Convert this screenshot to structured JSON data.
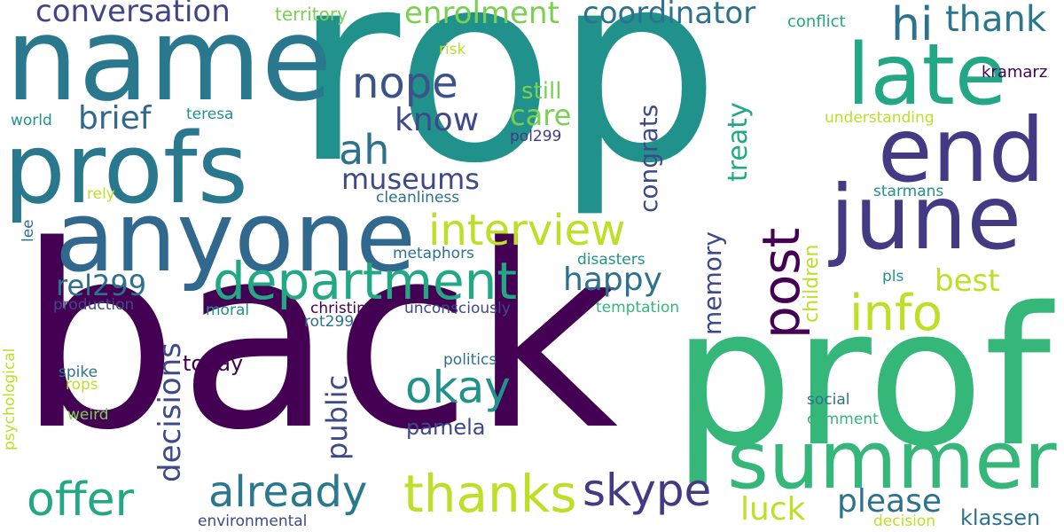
{
  "words": [
    {
      "key": "rop",
      "text": "rop",
      "color": "#21918c"
    },
    {
      "key": "back",
      "text": "back",
      "color": "#440154"
    },
    {
      "key": "prof",
      "text": "prof",
      "color": "#35b779"
    },
    {
      "key": "name",
      "text": "name",
      "color": "#2a788e"
    },
    {
      "key": "profs",
      "text": "profs",
      "color": "#2a788e"
    },
    {
      "key": "anyone",
      "text": "anyone",
      "color": "#31688e"
    },
    {
      "key": "june",
      "text": "june",
      "color": "#443983"
    },
    {
      "key": "end",
      "text": "end",
      "color": "#443983"
    },
    {
      "key": "late",
      "text": "late",
      "color": "#22a884"
    },
    {
      "key": "summer",
      "text": "summer",
      "color": "#35b779"
    },
    {
      "key": "department",
      "text": "department",
      "color": "#22a884"
    },
    {
      "key": "interview",
      "text": "interview",
      "color": "#bddf26"
    },
    {
      "key": "info",
      "text": "info",
      "color": "#bddf26"
    },
    {
      "key": "post",
      "text": "post",
      "color": "#440154"
    },
    {
      "key": "already",
      "text": "already",
      "color": "#2a788e"
    },
    {
      "key": "thanks",
      "text": "thanks",
      "color": "#bddf26"
    },
    {
      "key": "offer",
      "text": "offer",
      "color": "#22a884"
    },
    {
      "key": "skype",
      "text": "skype",
      "color": "#443983"
    },
    {
      "key": "okay",
      "text": "okay",
      "color": "#21918c"
    },
    {
      "key": "conversation",
      "text": "conversation",
      "color": "#414487"
    },
    {
      "key": "coordinator",
      "text": "coordinator",
      "color": "#2c728e"
    },
    {
      "key": "enrolment",
      "text": "enrolment",
      "color": "#7ad151"
    },
    {
      "key": "nope",
      "text": "nope",
      "color": "#3b528b"
    },
    {
      "key": "ah",
      "text": "ah",
      "color": "#2c728e"
    },
    {
      "key": "hi",
      "text": "hi",
      "color": "#2c728e"
    },
    {
      "key": "thank",
      "text": "thank",
      "color": "#2a788e"
    },
    {
      "key": "know",
      "text": "know",
      "color": "#3e4989"
    },
    {
      "key": "brief",
      "text": "brief",
      "color": "#31688e"
    },
    {
      "key": "care",
      "text": "care",
      "color": "#7ad151"
    },
    {
      "key": "museums",
      "text": "museums",
      "color": "#3e4989"
    },
    {
      "key": "rel299",
      "text": "rel299",
      "color": "#2c728e"
    },
    {
      "key": "happy",
      "text": "happy",
      "color": "#2c728e"
    },
    {
      "key": "best",
      "text": "best",
      "color": "#bddf26"
    },
    {
      "key": "please",
      "text": "please",
      "color": "#2c728e"
    },
    {
      "key": "luck",
      "text": "luck",
      "color": "#bddf26"
    },
    {
      "key": "decisions",
      "text": "decisions",
      "color": "#3e4989"
    },
    {
      "key": "public",
      "text": "public",
      "color": "#3e4989"
    },
    {
      "key": "congrats",
      "text": "congrats",
      "color": "#3e4989"
    },
    {
      "key": "treaty",
      "text": "treaty",
      "color": "#22a884"
    },
    {
      "key": "memory",
      "text": "memory",
      "color": "#3e4989"
    },
    {
      "key": "children",
      "text": "children",
      "color": "#bddf26"
    },
    {
      "key": "still",
      "text": "still",
      "color": "#7ad151"
    },
    {
      "key": "today",
      "text": "today",
      "color": "#440154"
    },
    {
      "key": "pamela",
      "text": "pamela",
      "color": "#3e4989"
    },
    {
      "key": "klassen",
      "text": "klassen",
      "color": "#2c728e"
    },
    {
      "key": "territory",
      "text": "territory",
      "color": "#7ad151"
    },
    {
      "key": "conflict",
      "text": "conflict",
      "color": "#22a884"
    },
    {
      "key": "kramarz",
      "text": "kramarz",
      "color": "#440154"
    },
    {
      "key": "risk",
      "text": "risk",
      "color": "#bddf26"
    },
    {
      "key": "world",
      "text": "world",
      "color": "#21918c"
    },
    {
      "key": "teresa",
      "text": "teresa",
      "color": "#21918c"
    },
    {
      "key": "understanding",
      "text": "understanding",
      "color": "#bddf26"
    },
    {
      "key": "pol299",
      "text": "pol299",
      "color": "#443983"
    },
    {
      "key": "cleanliness",
      "text": "cleanliness",
      "color": "#2c728e"
    },
    {
      "key": "starmans",
      "text": "starmans",
      "color": "#21918c"
    },
    {
      "key": "rely",
      "text": "rely",
      "color": "#bddf26"
    },
    {
      "key": "lee",
      "text": "lee",
      "color": "#2c728e"
    },
    {
      "key": "metaphors",
      "text": "metaphors",
      "color": "#2c728e"
    },
    {
      "key": "disasters",
      "text": "disasters",
      "color": "#21918c"
    },
    {
      "key": "pls",
      "text": "pls",
      "color": "#21918c"
    },
    {
      "key": "production",
      "text": "production",
      "color": "#3e4989"
    },
    {
      "key": "moral",
      "text": "moral",
      "color": "#21918c"
    },
    {
      "key": "christina",
      "text": "christina",
      "color": "#440154"
    },
    {
      "key": "unconsciously",
      "text": "unconsciously",
      "color": "#3e4989"
    },
    {
      "key": "rot299",
      "text": "rot299",
      "color": "#2c728e"
    },
    {
      "key": "temptation",
      "text": "temptation",
      "color": "#35b779"
    },
    {
      "key": "psychological",
      "text": "psychological",
      "color": "#bddf26"
    },
    {
      "key": "politics",
      "text": "politics",
      "color": "#2c728e"
    },
    {
      "key": "spike",
      "text": "spike",
      "color": "#2c728e"
    },
    {
      "key": "rops",
      "text": "rops",
      "color": "#bddf26"
    },
    {
      "key": "weird",
      "text": "weird",
      "color": "#7ad151"
    },
    {
      "key": "social",
      "text": "social",
      "color": "#2c728e"
    },
    {
      "key": "comment",
      "text": "comment",
      "color": "#35b779"
    },
    {
      "key": "environmental",
      "text": "environmental",
      "color": "#3e4989"
    },
    {
      "key": "decision",
      "text": "decision",
      "color": "#bddf26"
    }
  ]
}
